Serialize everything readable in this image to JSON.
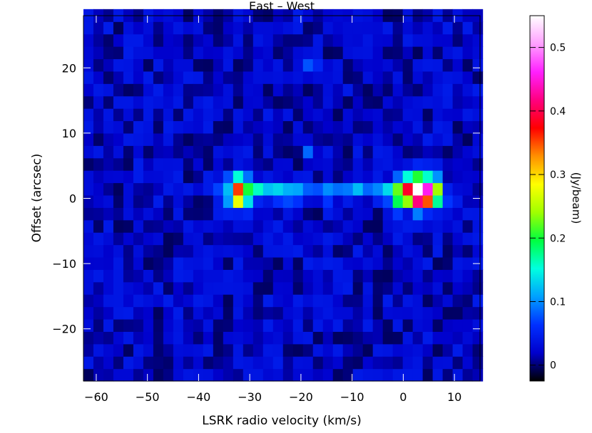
{
  "chart_data": {
    "type": "heatmap",
    "title": "East – West",
    "xlabel": "LSRK radio velocity  (km/s)",
    "ylabel": "Offset (arcsec)",
    "xlim": [
      -62.5,
      15
    ],
    "ylim": [
      -28,
      28
    ],
    "x_ticks": [
      -60,
      -50,
      -40,
      -30,
      -20,
      -10,
      0,
      10
    ],
    "y_ticks": [
      -20,
      -10,
      0,
      10,
      20
    ],
    "colorbar": {
      "label": "(Jy/beam)",
      "range": [
        -0.025,
        0.55
      ],
      "ticks": [
        0,
        0.1,
        0.2,
        0.3,
        0.4,
        0.5
      ],
      "colors": [
        "#000000",
        "#0000cc",
        "#0030ff",
        "#00a0ff",
        "#00ffe0",
        "#00ff40",
        "#a0ff00",
        "#ffff00",
        "#ff9000",
        "#ff0000",
        "#ff0080",
        "#ff20ff",
        "#ffa0ff",
        "#ffffff"
      ]
    },
    "background_level": 0.02,
    "emission_features": [
      {
        "velocity": -35,
        "offset": 1,
        "intensity": 0.06
      },
      {
        "velocity": -33,
        "offset": 1,
        "intensity": 0.15
      },
      {
        "velocity": -32,
        "offset": 1,
        "intensity": 0.25
      },
      {
        "velocity": -30,
        "offset": 1,
        "intensity": 0.14
      },
      {
        "velocity": -28,
        "offset": 1,
        "intensity": 0.1
      },
      {
        "velocity": -26,
        "offset": 1,
        "intensity": 0.09
      },
      {
        "velocity": -24,
        "offset": 1,
        "intensity": 0.08
      },
      {
        "velocity": -22,
        "offset": 1,
        "intensity": 0.08
      },
      {
        "velocity": -20,
        "offset": 1,
        "intensity": 0.07
      },
      {
        "velocity": -18,
        "offset": 1,
        "intensity": 0.07
      },
      {
        "velocity": -16,
        "offset": 1,
        "intensity": 0.07
      },
      {
        "velocity": -14,
        "offset": 1,
        "intensity": 0.06
      },
      {
        "velocity": -12,
        "offset": 1,
        "intensity": 0.07
      },
      {
        "velocity": -10,
        "offset": 1,
        "intensity": 0.08
      },
      {
        "velocity": -8,
        "offset": 1,
        "intensity": 0.07
      },
      {
        "velocity": -6,
        "offset": 1,
        "intensity": 0.05
      },
      {
        "velocity": -4,
        "offset": 1,
        "intensity": 0.05
      },
      {
        "velocity": -2,
        "offset": 1,
        "intensity": 0.12
      },
      {
        "velocity": 0,
        "offset": 1,
        "intensity": 0.28
      },
      {
        "velocity": 2,
        "offset": 1,
        "intensity": 0.3
      },
      {
        "velocity": 3.5,
        "offset": 1,
        "intensity": 0.5
      },
      {
        "velocity": 5,
        "offset": 1,
        "intensity": 0.24
      },
      {
        "velocity": 7,
        "offset": 1,
        "intensity": 0.18
      },
      {
        "velocity": -18,
        "offset": 21,
        "intensity": 0.06
      },
      {
        "velocity": -18,
        "offset": 7,
        "intensity": 0.05
      }
    ]
  }
}
